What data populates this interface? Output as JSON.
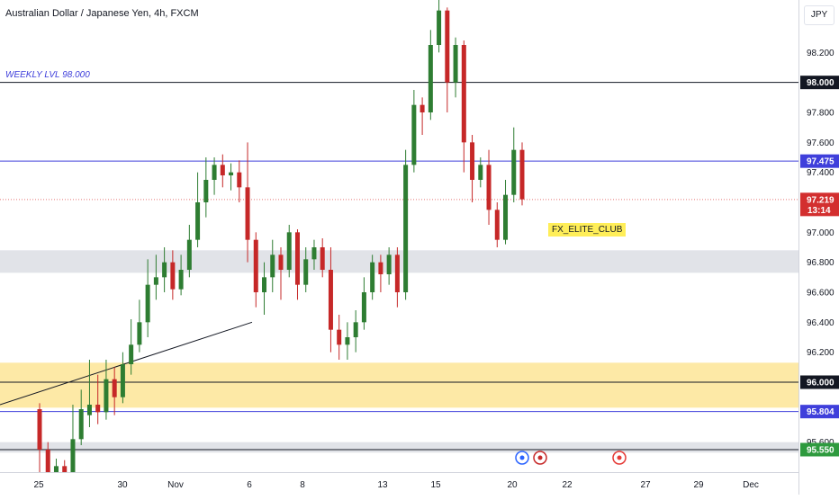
{
  "header": {
    "title": "Australian Dollar / Japanese Yen, 4h, FXCM"
  },
  "price_axis": {
    "currency": "JPY",
    "ticks": [
      "98.200",
      "97.800",
      "97.600",
      "97.400",
      "97.000",
      "96.800",
      "96.600",
      "96.400",
      "96.200",
      "95.600"
    ]
  },
  "time_axis": {
    "ticks": [
      "25",
      "30",
      "Nov",
      "6",
      "8",
      "13",
      "15",
      "20",
      "22",
      "27",
      "29",
      "Dec"
    ]
  },
  "annotations": {
    "weekly_level": "WEEKLY LVL 98.000",
    "watermark": "FX_ELITE_CLUB"
  },
  "price_tags": [
    {
      "text": "98.000",
      "color": "#131722"
    },
    {
      "text": "97.475",
      "color": "#3f3fdb"
    },
    {
      "text": "97.219",
      "sub": "13:14",
      "color": "#d32f2f"
    },
    {
      "text": "96.000",
      "color": "#131722"
    },
    {
      "text": "95.804",
      "color": "#3f3fdb"
    },
    {
      "text": "95.550",
      "color": "#2e9a3e"
    }
  ],
  "events": [
    {
      "icon": "lightning-icon",
      "color": "#2962ff"
    },
    {
      "icon": "flag-au-icon",
      "color": "#c62828"
    },
    {
      "icon": "record-icon",
      "color": "#e53935"
    }
  ],
  "colors": {
    "up": "#2e7d32",
    "down": "#c62828",
    "zone": "#fde9a6",
    "band": "#e1e3e8"
  },
  "chart_data": {
    "type": "candlestick",
    "ylim": [
      95.4,
      98.55
    ],
    "levels": [
      98.0,
      97.475,
      97.219,
      96.0,
      95.804,
      95.55
    ],
    "zones": [
      {
        "from": 96.13,
        "to": 95.83,
        "color": "#fde9a6"
      },
      {
        "from": 96.88,
        "to": 96.73,
        "color": "#e1e3e8"
      },
      {
        "from": 95.6,
        "to": 95.53,
        "color": "#e1e3e8"
      }
    ],
    "trendline": [
      [
        95.85,
        0
      ],
      [
        96.4,
        280
      ]
    ],
    "candles": [
      [
        95.82,
        95.55,
        95.86,
        95.4
      ],
      [
        95.55,
        95.4,
        95.6,
        95.35
      ],
      [
        95.4,
        95.44,
        95.49,
        95.36
      ],
      [
        95.44,
        95.38,
        95.48,
        95.33
      ],
      [
        95.4,
        95.62,
        95.85,
        95.35
      ],
      [
        95.62,
        95.82,
        95.95,
        95.58
      ],
      [
        95.78,
        95.85,
        96.15,
        95.7
      ],
      [
        95.85,
        95.8,
        96.05,
        95.72
      ],
      [
        95.8,
        96.02,
        96.15,
        95.75
      ],
      [
        96.02,
        95.9,
        96.1,
        95.78
      ],
      [
        95.9,
        96.12,
        96.2,
        95.86
      ],
      [
        96.12,
        96.25,
        96.42,
        96.05
      ],
      [
        96.25,
        96.4,
        96.55,
        96.2
      ],
      [
        96.4,
        96.65,
        96.82,
        96.3
      ],
      [
        96.65,
        96.7,
        96.85,
        96.55
      ],
      [
        96.7,
        96.8,
        96.9,
        96.6
      ],
      [
        96.8,
        96.62,
        96.88,
        96.55
      ],
      [
        96.62,
        96.75,
        96.85,
        96.58
      ],
      [
        96.75,
        96.95,
        97.05,
        96.7
      ],
      [
        96.95,
        97.2,
        97.4,
        96.9
      ],
      [
        97.2,
        97.35,
        97.5,
        97.1
      ],
      [
        97.35,
        97.45,
        97.5,
        97.25
      ],
      [
        97.45,
        97.38,
        97.52,
        97.3
      ],
      [
        97.38,
        97.4,
        97.46,
        97.28
      ],
      [
        97.4,
        97.3,
        97.48,
        97.2
      ],
      [
        97.3,
        96.95,
        97.6,
        96.8
      ],
      [
        96.95,
        96.6,
        97.0,
        96.5
      ],
      [
        96.6,
        96.7,
        96.8,
        96.45
      ],
      [
        96.7,
        96.85,
        96.95,
        96.6
      ],
      [
        96.85,
        96.75,
        96.9,
        96.55
      ],
      [
        96.75,
        97.0,
        97.05,
        96.7
      ],
      [
        97.0,
        96.65,
        97.02,
        96.55
      ],
      [
        96.65,
        96.82,
        96.9,
        96.6
      ],
      [
        96.82,
        96.9,
        96.95,
        96.75
      ],
      [
        96.9,
        96.75,
        96.96,
        96.7
      ],
      [
        96.75,
        96.35,
        96.9,
        96.2
      ],
      [
        96.35,
        96.25,
        96.45,
        96.15
      ],
      [
        96.25,
        96.3,
        96.4,
        96.15
      ],
      [
        96.3,
        96.4,
        96.48,
        96.2
      ],
      [
        96.4,
        96.6,
        96.7,
        96.35
      ],
      [
        96.6,
        96.8,
        96.85,
        96.55
      ],
      [
        96.8,
        96.72,
        96.85,
        96.6
      ],
      [
        96.72,
        96.85,
        96.9,
        96.65
      ],
      [
        96.85,
        96.6,
        96.9,
        96.5
      ],
      [
        96.6,
        97.45,
        97.55,
        96.55
      ],
      [
        97.45,
        97.85,
        97.95,
        97.4
      ],
      [
        97.85,
        97.8,
        97.9,
        97.65
      ],
      [
        97.8,
        98.25,
        98.35,
        97.75
      ],
      [
        98.25,
        98.48,
        98.55,
        98.2
      ],
      [
        98.48,
        98.0,
        98.5,
        97.8
      ],
      [
        98.0,
        98.25,
        98.3,
        97.9
      ],
      [
        98.25,
        97.6,
        98.28,
        97.4
      ],
      [
        97.6,
        97.35,
        97.65,
        97.2
      ],
      [
        97.35,
        97.45,
        97.5,
        97.3
      ],
      [
        97.45,
        97.15,
        97.55,
        97.05
      ],
      [
        97.15,
        96.95,
        97.2,
        96.9
      ],
      [
        96.95,
        97.25,
        97.35,
        96.92
      ],
      [
        97.25,
        97.55,
        97.7,
        97.2
      ],
      [
        97.55,
        97.22,
        97.6,
        97.18
      ]
    ]
  }
}
